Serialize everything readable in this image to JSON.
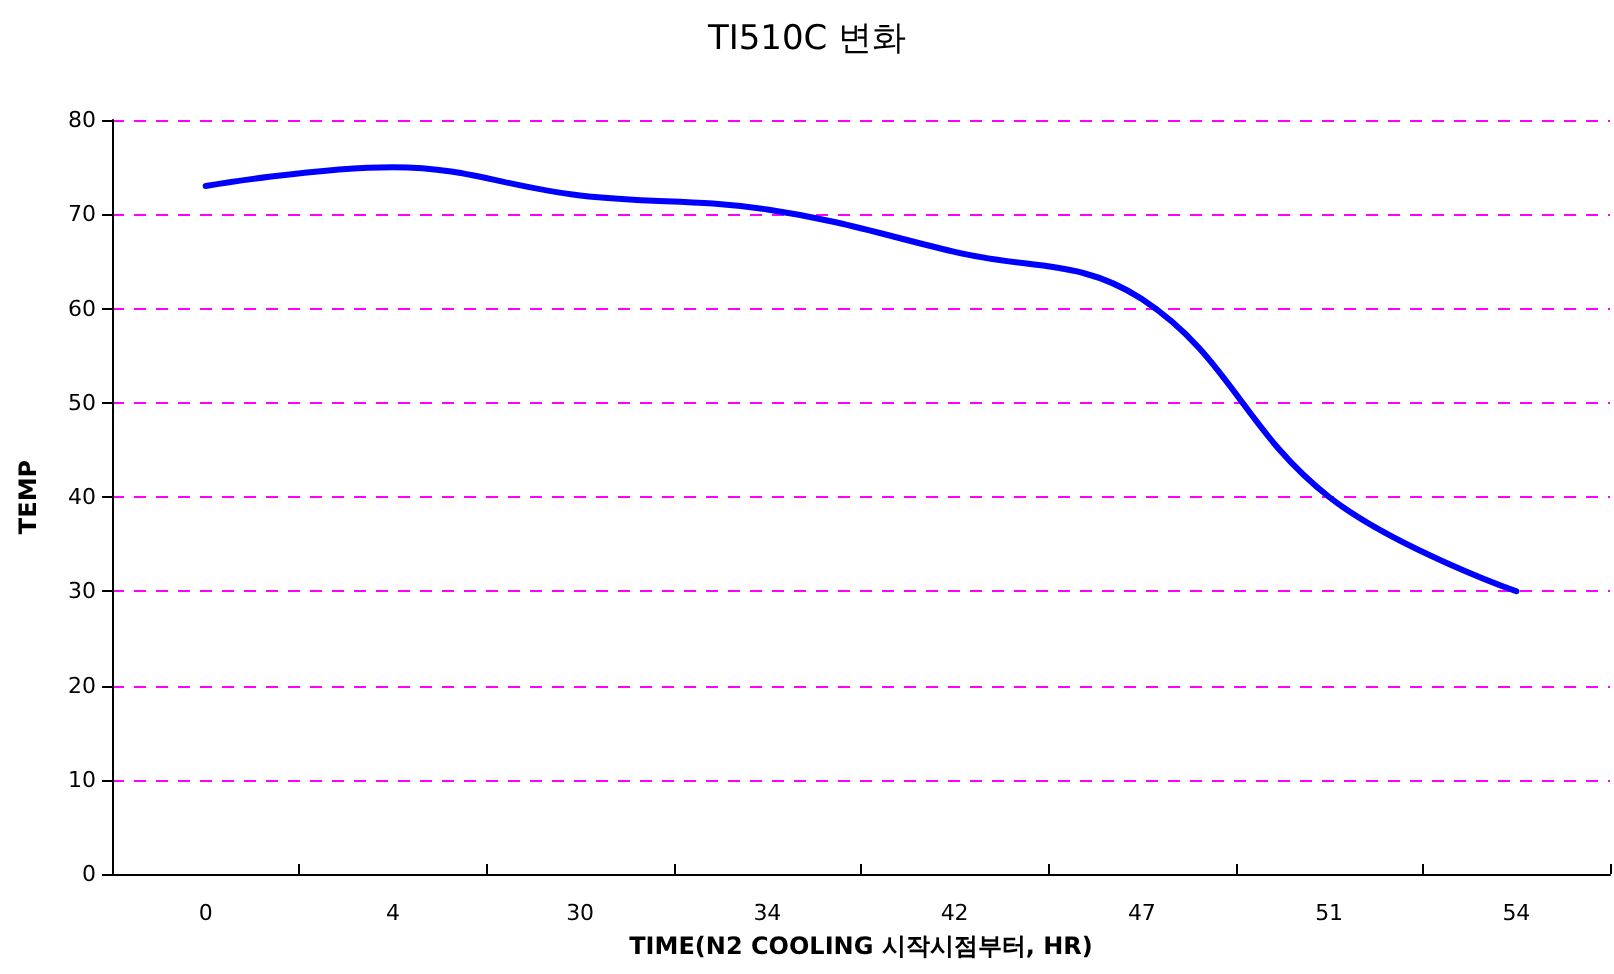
{
  "chart_data": {
    "type": "line",
    "title": "TI510C 변화",
    "xlabel": "TIME(N2 COOLING 시작시점부터, HR)",
    "ylabel": "TEMP",
    "categories": [
      "0",
      "4",
      "30",
      "34",
      "42",
      "47",
      "51",
      "54"
    ],
    "series": [
      {
        "color": "#0000ff",
        "values": [
          73,
          75,
          72,
          70.5,
          66,
          61,
          40,
          30
        ]
      }
    ],
    "ylim": [
      0,
      80
    ],
    "yticks": [
      0,
      10,
      20,
      30,
      40,
      50,
      60,
      70,
      80
    ],
    "grid": "y",
    "line_style": "solid",
    "marker": "none"
  }
}
